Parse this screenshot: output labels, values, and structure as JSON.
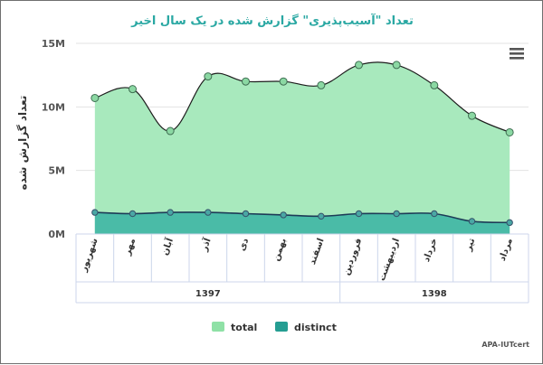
{
  "chart_data": {
    "type": "area",
    "title": "تعداد \"آسیب‌پذیری\" گزارش شده در یک سال اخیر",
    "ylabel": "تعداد گزارش شده",
    "xlabel": "",
    "ylim": [
      0,
      15000000
    ],
    "yticks": [
      {
        "value": 0,
        "label": "0M"
      },
      {
        "value": 5000000,
        "label": "5M"
      },
      {
        "value": 10000000,
        "label": "10M"
      },
      {
        "value": 15000000,
        "label": "15M"
      }
    ],
    "categories": [
      "شهریور",
      "مهر",
      "آبان",
      "آذر",
      "دی",
      "بهمن",
      "اسفند",
      "فروردین",
      "اردیبهشت",
      "خرداد",
      "تیر",
      "مرداد"
    ],
    "groups": [
      {
        "label": "1397",
        "count": 7
      },
      {
        "label": "1398",
        "count": 5
      }
    ],
    "series": [
      {
        "name": "total",
        "color": "#a8e9bd",
        "line": "#1d1d1d",
        "values": [
          10700000,
          11400000,
          8100000,
          12400000,
          12000000,
          12000000,
          11700000,
          13300000,
          13300000,
          11700000,
          9300000,
          8000000
        ]
      },
      {
        "name": "distinct",
        "color": "#45b8a5",
        "line": "#1d3b57",
        "values": [
          1700000,
          1600000,
          1700000,
          1700000,
          1600000,
          1500000,
          1400000,
          1600000,
          1600000,
          1600000,
          1000000,
          900000
        ]
      }
    ],
    "legend_position": "bottom",
    "grid": true,
    "credit": "APA-IUTcert"
  },
  "menu_icon": "hamburger-menu-icon"
}
